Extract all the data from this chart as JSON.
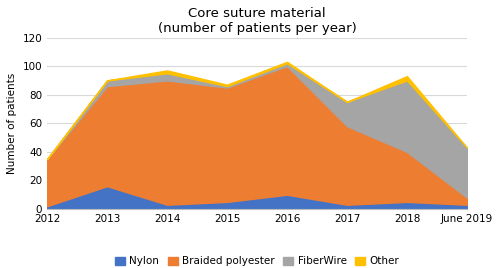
{
  "title": "Core suture material\n(number of patients per year)",
  "ylabel": "Number of patients",
  "x_labels": [
    "2012",
    "2013",
    "2014",
    "2015",
    "2016",
    "2017",
    "2018",
    "June 2019"
  ],
  "x_values": [
    0,
    1,
    2,
    3,
    4,
    5,
    6,
    7
  ],
  "nylon": [
    2,
    16,
    3,
    5,
    10,
    3,
    5,
    3
  ],
  "braided_polyester": [
    33,
    70,
    87,
    80,
    90,
    55,
    35,
    5
  ],
  "fiberwire": [
    0,
    4,
    5,
    1,
    2,
    17,
    50,
    35
  ],
  "other": [
    0,
    0,
    2,
    1,
    1,
    0,
    3,
    0
  ],
  "nylon_color": "#4472c4",
  "braided_color": "#ed7d31",
  "fiberwire_color": "#a5a5a5",
  "other_color": "#ffc000",
  "ylim": [
    0,
    120
  ],
  "yticks": [
    0,
    20,
    40,
    60,
    80,
    100,
    120
  ],
  "background_color": "#ffffff",
  "grid_color": "#d9d9d9",
  "title_fontsize": 9.5,
  "axis_label_fontsize": 7.5,
  "tick_fontsize": 7.5,
  "legend_fontsize": 7.5
}
